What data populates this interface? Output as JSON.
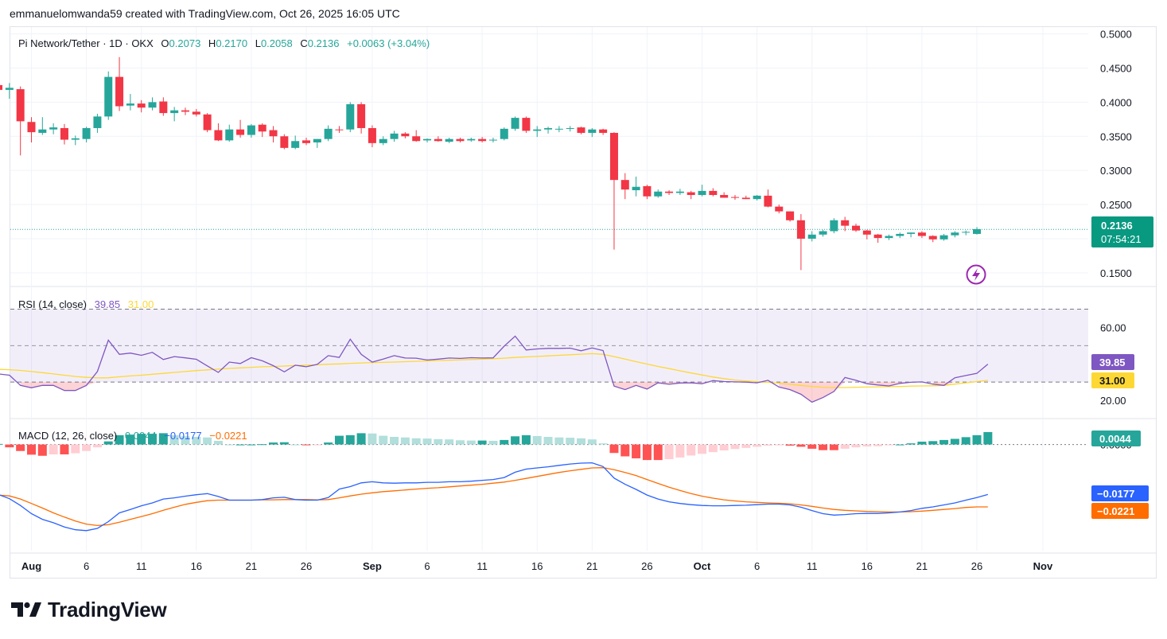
{
  "header": {
    "credit": "emmanuelomwanda59 created with TradingView.com, Oct 26, 2025 16:05 UTC"
  },
  "legend": {
    "symbol": "Pi Network/Tether · 1D · OKX",
    "o_label": "O",
    "o_value": "0.2073",
    "h_label": "H",
    "h_value": "0.2170",
    "l_label": "L",
    "l_value": "0.2058",
    "c_label": "C",
    "c_value": "0.2136",
    "change": "+0.0063 (+3.04%)"
  },
  "price_tag": {
    "price": "0.2136",
    "countdown": "07:54:21"
  },
  "rsi_legend": {
    "name": "RSI (14, close)",
    "rsi": "39.85",
    "ma": "31.00"
  },
  "macd_legend": {
    "name": "MACD (12, 26, close)",
    "hist": "0.0044",
    "macd": "−0.0177",
    "signal": "−0.0221"
  },
  "colors": {
    "up": "#26a69a",
    "down": "#f23645",
    "rsi": "#7e57c2",
    "rsi_ma": "#fdd835",
    "macd": "#2962ff",
    "signal": "#ff6d00",
    "hist_up_strong": "#26a69a",
    "hist_up_weak": "#b2dfdb",
    "hist_down_strong": "#ff5252",
    "hist_down_weak": "#ffcdd2",
    "alert": "#9c27b0"
  },
  "logo": {
    "text": "TradingView"
  },
  "chart_data": [
    {
      "type": "candlestick",
      "title": "Pi Network/Tether · 1D · OKX",
      "ylim": [
        0.13,
        0.51
      ],
      "y_ticks": [
        "0.5000",
        "0.4500",
        "0.4000",
        "0.3500",
        "0.3000",
        "0.2500",
        "0.1500"
      ],
      "x_ticks": [
        "Aug",
        "6",
        "11",
        "16",
        "21",
        "26",
        "Sep",
        "6",
        "11",
        "16",
        "21",
        "26",
        "Oct",
        "6",
        "11",
        "16",
        "21",
        "26",
        "Nov"
      ],
      "start": "2025-07-29",
      "last_price": 0.2136,
      "candles": [
        [
          0.425,
          0.436,
          0.412,
          0.418
        ],
        [
          0.418,
          0.428,
          0.405,
          0.421
        ],
        [
          0.419,
          0.423,
          0.322,
          0.372
        ],
        [
          0.371,
          0.378,
          0.341,
          0.356
        ],
        [
          0.355,
          0.378,
          0.352,
          0.36
        ],
        [
          0.36,
          0.369,
          0.353,
          0.363
        ],
        [
          0.362,
          0.368,
          0.338,
          0.345
        ],
        [
          0.345,
          0.351,
          0.337,
          0.347
        ],
        [
          0.346,
          0.364,
          0.341,
          0.362
        ],
        [
          0.362,
          0.383,
          0.355,
          0.379
        ],
        [
          0.379,
          0.445,
          0.374,
          0.437
        ],
        [
          0.437,
          0.466,
          0.387,
          0.394
        ],
        [
          0.395,
          0.412,
          0.388,
          0.398
        ],
        [
          0.398,
          0.403,
          0.385,
          0.392
        ],
        [
          0.392,
          0.407,
          0.388,
          0.4
        ],
        [
          0.401,
          0.407,
          0.38,
          0.384
        ],
        [
          0.384,
          0.393,
          0.372,
          0.388
        ],
        [
          0.388,
          0.392,
          0.381,
          0.386
        ],
        [
          0.386,
          0.39,
          0.379,
          0.382
        ],
        [
          0.382,
          0.384,
          0.356,
          0.359
        ],
        [
          0.359,
          0.369,
          0.343,
          0.344
        ],
        [
          0.344,
          0.367,
          0.342,
          0.36
        ],
        [
          0.36,
          0.374,
          0.348,
          0.352
        ],
        [
          0.352,
          0.368,
          0.348,
          0.366
        ],
        [
          0.367,
          0.369,
          0.349,
          0.357
        ],
        [
          0.359,
          0.365,
          0.341,
          0.35
        ],
        [
          0.35,
          0.353,
          0.331,
          0.333
        ],
        [
          0.333,
          0.351,
          0.331,
          0.343
        ],
        [
          0.344,
          0.348,
          0.337,
          0.34
        ],
        [
          0.341,
          0.346,
          0.333,
          0.346
        ],
        [
          0.346,
          0.366,
          0.343,
          0.361
        ],
        [
          0.36,
          0.365,
          0.355,
          0.359
        ],
        [
          0.36,
          0.4,
          0.356,
          0.397
        ],
        [
          0.397,
          0.4,
          0.354,
          0.362
        ],
        [
          0.362,
          0.366,
          0.334,
          0.34
        ],
        [
          0.34,
          0.35,
          0.337,
          0.346
        ],
        [
          0.346,
          0.358,
          0.342,
          0.354
        ],
        [
          0.354,
          0.356,
          0.347,
          0.35
        ],
        [
          0.35,
          0.359,
          0.342,
          0.343
        ],
        [
          0.344,
          0.347,
          0.341,
          0.346
        ],
        [
          0.346,
          0.35,
          0.342,
          0.343
        ],
        [
          0.342,
          0.348,
          0.34,
          0.346
        ],
        [
          0.346,
          0.348,
          0.341,
          0.343
        ],
        [
          0.344,
          0.348,
          0.342,
          0.346
        ],
        [
          0.346,
          0.349,
          0.341,
          0.343
        ],
        [
          0.344,
          0.348,
          0.341,
          0.345
        ],
        [
          0.346,
          0.363,
          0.344,
          0.361
        ],
        [
          0.361,
          0.379,
          0.358,
          0.377
        ],
        [
          0.377,
          0.379,
          0.355,
          0.358
        ],
        [
          0.358,
          0.365,
          0.349,
          0.36
        ],
        [
          0.36,
          0.364,
          0.354,
          0.362
        ],
        [
          0.361,
          0.365,
          0.356,
          0.361
        ],
        [
          0.361,
          0.365,
          0.357,
          0.362
        ],
        [
          0.363,
          0.364,
          0.353,
          0.355
        ],
        [
          0.355,
          0.362,
          0.349,
          0.36
        ],
        [
          0.36,
          0.361,
          0.352,
          0.355
        ],
        [
          0.355,
          0.356,
          0.184,
          0.286
        ],
        [
          0.286,
          0.296,
          0.258,
          0.272
        ],
        [
          0.271,
          0.291,
          0.262,
          0.276
        ],
        [
          0.277,
          0.279,
          0.258,
          0.262
        ],
        [
          0.262,
          0.272,
          0.26,
          0.269
        ],
        [
          0.269,
          0.271,
          0.264,
          0.267
        ],
        [
          0.267,
          0.273,
          0.264,
          0.269
        ],
        [
          0.268,
          0.27,
          0.258,
          0.264
        ],
        [
          0.264,
          0.279,
          0.262,
          0.27
        ],
        [
          0.27,
          0.274,
          0.262,
          0.264
        ],
        [
          0.264,
          0.268,
          0.26,
          0.26
        ],
        [
          0.261,
          0.264,
          0.257,
          0.26
        ],
        [
          0.26,
          0.263,
          0.258,
          0.258
        ],
        [
          0.258,
          0.264,
          0.256,
          0.263
        ],
        [
          0.263,
          0.272,
          0.246,
          0.247
        ],
        [
          0.247,
          0.25,
          0.237,
          0.24
        ],
        [
          0.24,
          0.24,
          0.225,
          0.227
        ],
        [
          0.227,
          0.236,
          0.154,
          0.2
        ],
        [
          0.2,
          0.211,
          0.196,
          0.206
        ],
        [
          0.206,
          0.213,
          0.203,
          0.211
        ],
        [
          0.211,
          0.23,
          0.208,
          0.227
        ],
        [
          0.227,
          0.232,
          0.211,
          0.219
        ],
        [
          0.219,
          0.222,
          0.21,
          0.212
        ],
        [
          0.212,
          0.213,
          0.199,
          0.206
        ],
        [
          0.206,
          0.207,
          0.194,
          0.201
        ],
        [
          0.201,
          0.206,
          0.198,
          0.204
        ],
        [
          0.204,
          0.209,
          0.201,
          0.207
        ],
        [
          0.207,
          0.209,
          0.202,
          0.209
        ],
        [
          0.209,
          0.211,
          0.201,
          0.204
        ],
        [
          0.204,
          0.205,
          0.195,
          0.199
        ],
        [
          0.199,
          0.207,
          0.197,
          0.205
        ],
        [
          0.205,
          0.211,
          0.202,
          0.209
        ],
        [
          0.209,
          0.212,
          0.205,
          0.21
        ],
        [
          0.207,
          0.217,
          0.206,
          0.214
        ]
      ]
    },
    {
      "type": "line",
      "title": "RSI (14, close)",
      "ylim": [
        10,
        82
      ],
      "y_ticks": [
        60,
        20
      ],
      "bands": [
        70,
        50,
        30
      ],
      "series": [
        {
          "name": "RSI",
          "values": [
            34.5,
            33.8,
            28.2,
            26.9,
            28.2,
            28.2,
            25.4,
            25.4,
            28.2,
            35.8,
            53,
            45.2,
            45.9,
            44.7,
            46.3,
            42.4,
            44,
            43.3,
            42.5,
            38.9,
            35.3,
            41,
            40.2,
            43.4,
            41.7,
            39,
            35.6,
            39.3,
            38.4,
            39.7,
            44.5,
            43.5,
            53.5,
            45.2,
            41,
            42.6,
            44.5,
            43.2,
            43.1,
            42.1,
            42.6,
            43.2,
            43,
            43.4,
            43.2,
            43.3,
            49.7,
            55.2,
            47.6,
            48.2,
            48.5,
            48.5,
            48.6,
            47.2,
            48.7,
            47.3,
            27.8,
            25.9,
            28.2,
            26.2,
            29.6,
            28.8,
            29.5,
            29.6,
            29.1,
            30.8,
            30.3,
            30.1,
            30,
            29.6,
            31,
            27.3,
            25.9,
            23.3,
            19,
            21.5,
            24.9,
            32.5,
            31,
            29.1,
            28.4,
            27.9,
            29.3,
            29.9,
            30.1,
            28.9,
            28.2,
            32.4,
            33.6,
            34.8,
            39.85
          ]
        },
        {
          "name": "MA",
          "values": [
            37,
            36.8,
            36.4,
            35.8,
            35.2,
            34.5,
            33.8,
            33.1,
            32.6,
            32.3,
            32.4,
            32.9,
            33.4,
            33.8,
            34.3,
            34.8,
            35.3,
            35.8,
            36.3,
            36.7,
            37.1,
            37.5,
            37.8,
            38.1,
            38.4,
            38.6,
            38.8,
            39.1,
            39.3,
            39.5,
            39.8,
            40,
            40.3,
            40.5,
            40.7,
            40.8,
            41,
            41.2,
            41.4,
            41.6,
            41.8,
            42,
            42.2,
            42.4,
            42.6,
            42.8,
            43.1,
            43.5,
            43.8,
            44.1,
            44.4,
            44.7,
            45,
            45.3,
            45.6,
            45.2,
            44,
            42.6,
            41.2,
            39.9,
            38.6,
            37.4,
            36.2,
            35,
            33.9,
            32.8,
            31.9,
            31.1,
            30.6,
            30.2,
            29.9,
            29.4,
            28.8,
            28.2,
            27.6,
            27.2,
            27,
            27,
            27.2,
            27.3,
            27.4,
            27.5,
            27.6,
            27.8,
            27.9,
            28,
            28.2,
            28.9,
            29.6,
            30.3,
            31
          ]
        }
      ]
    },
    {
      "type": "line",
      "title": "MACD (12, 26, close)",
      "ylim": [
        -0.0376,
        0.0089
      ],
      "y_ticks": [
        0
      ],
      "series": [
        {
          "name": "MACD",
          "values": [
            -0.0177,
            -0.0192,
            -0.0216,
            -0.0245,
            -0.0265,
            -0.0277,
            -0.0292,
            -0.0302,
            -0.0305,
            -0.0297,
            -0.0273,
            -0.0242,
            -0.023,
            -0.0217,
            -0.0207,
            -0.0193,
            -0.0189,
            -0.0183,
            -0.0178,
            -0.0174,
            -0.0184,
            -0.0197,
            -0.0197,
            -0.0197,
            -0.0195,
            -0.0189,
            -0.0187,
            -0.0195,
            -0.0197,
            -0.0197,
            -0.0188,
            -0.0158,
            -0.0149,
            -0.0136,
            -0.0132,
            -0.0136,
            -0.0137,
            -0.0136,
            -0.0136,
            -0.0134,
            -0.0134,
            -0.0132,
            -0.0132,
            -0.013,
            -0.0127,
            -0.0124,
            -0.0117,
            -0.0098,
            -0.0087,
            -0.0083,
            -0.0079,
            -0.0074,
            -0.0069,
            -0.0066,
            -0.0065,
            -0.0078,
            -0.0119,
            -0.0141,
            -0.0159,
            -0.0179,
            -0.0193,
            -0.0203,
            -0.0209,
            -0.0213,
            -0.0216,
            -0.0217,
            -0.0217,
            -0.0216,
            -0.0215,
            -0.0213,
            -0.0211,
            -0.0211,
            -0.0214,
            -0.0222,
            -0.0234,
            -0.0245,
            -0.025,
            -0.0248,
            -0.0245,
            -0.0244,
            -0.0244,
            -0.0242,
            -0.0239,
            -0.0234,
            -0.0226,
            -0.0221,
            -0.0214,
            -0.0207,
            -0.0197,
            -0.0188,
            -0.0177
          ]
        },
        {
          "name": "Signal",
          "values": [
            -0.0179,
            -0.0182,
            -0.0193,
            -0.0209,
            -0.0225,
            -0.0242,
            -0.0257,
            -0.0271,
            -0.0282,
            -0.0287,
            -0.0284,
            -0.0275,
            -0.0265,
            -0.0255,
            -0.0245,
            -0.0233,
            -0.0222,
            -0.0212,
            -0.0205,
            -0.0199,
            -0.0197,
            -0.0197,
            -0.0197,
            -0.0197,
            -0.0196,
            -0.0196,
            -0.0195,
            -0.0195,
            -0.0195,
            -0.0196,
            -0.0195,
            -0.0189,
            -0.0182,
            -0.0176,
            -0.0171,
            -0.0167,
            -0.0164,
            -0.0161,
            -0.0158,
            -0.0155,
            -0.0153,
            -0.015,
            -0.0147,
            -0.0144,
            -0.0141,
            -0.0137,
            -0.0133,
            -0.0127,
            -0.012,
            -0.0113,
            -0.0106,
            -0.0099,
            -0.0093,
            -0.0088,
            -0.0083,
            -0.0082,
            -0.0089,
            -0.0099,
            -0.011,
            -0.0124,
            -0.0138,
            -0.0151,
            -0.0163,
            -0.0174,
            -0.0183,
            -0.019,
            -0.0196,
            -0.02,
            -0.0203,
            -0.0205,
            -0.0207,
            -0.0208,
            -0.021,
            -0.0214,
            -0.0219,
            -0.0225,
            -0.023,
            -0.0233,
            -0.0235,
            -0.0237,
            -0.0238,
            -0.0239,
            -0.0239,
            -0.0238,
            -0.0236,
            -0.0233,
            -0.023,
            -0.0227,
            -0.0223,
            -0.0221,
            -0.0221
          ]
        }
      ]
    }
  ]
}
